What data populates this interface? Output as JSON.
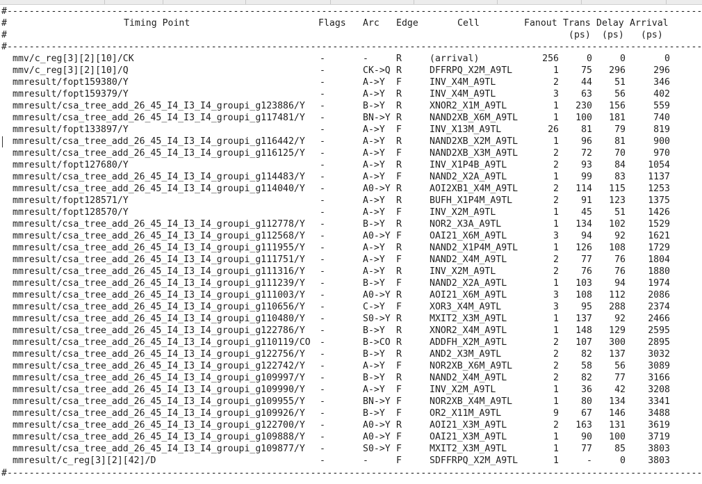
{
  "separator": "#---------------------------------------------------------------------------------------------------------------------------------",
  "header1": {
    "hash": "#",
    "timing_point": "Timing Point",
    "flags": "Flags",
    "arc": "Arc",
    "edge": "Edge",
    "cell": "Cell",
    "fanout": "Fanout",
    "trans": "Trans",
    "delay": "Delay",
    "arrival": "Arrival"
  },
  "header2": {
    "hash": "#",
    "trans_unit": "(ps)",
    "delay_unit": "(ps)",
    "arrival_unit": "(ps)"
  },
  "rows": [
    [
      "mmv/c_reg[3][2][10]/CK",
      "-",
      "-",
      "R",
      "(arrival)",
      "256",
      "0",
      "0",
      "0"
    ],
    [
      "mmv/c_reg[3][2][10]/Q",
      "-",
      "CK->Q",
      "R",
      "DFFRPQ_X2M_A9TL",
      "1",
      "75",
      "296",
      "296"
    ],
    [
      "mmresult/fopt159380/Y",
      "-",
      "A->Y",
      "F",
      "INV_X4M_A9TL",
      "2",
      "44",
      "51",
      "346"
    ],
    [
      "mmresult/fopt159379/Y",
      "-",
      "A->Y",
      "R",
      "INV_X4M_A9TL",
      "3",
      "63",
      "56",
      "402"
    ],
    [
      "mmresult/csa_tree_add_26_45_I4_I3_I4_groupi_g123886/Y",
      "-",
      "B->Y",
      "R",
      "XNOR2_X1M_A9TL",
      "1",
      "230",
      "156",
      "559"
    ],
    [
      "mmresult/csa_tree_add_26_45_I4_I3_I4_groupi_g117481/Y",
      "-",
      "BN->Y",
      "R",
      "NAND2XB_X6M_A9TL",
      "1",
      "100",
      "181",
      "740"
    ],
    [
      "mmresult/fopt133897/Y",
      "-",
      "A->Y",
      "F",
      "INV_X13M_A9TL",
      "26",
      "81",
      "79",
      "819"
    ],
    [
      "mmresult/csa_tree_add_26_45_I4_I3_I4_groupi_g116442/Y",
      "-",
      "A->Y",
      "R",
      "NAND2XB_X2M_A9TL",
      "1",
      "96",
      "81",
      "900"
    ],
    [
      "mmresult/csa_tree_add_26_45_I4_I3_I4_groupi_g116125/Y",
      "-",
      "A->Y",
      "F",
      "NAND2XB_X3M_A9TL",
      "2",
      "72",
      "70",
      "970"
    ],
    [
      "mmresult/fopt127680/Y",
      "-",
      "A->Y",
      "R",
      "INV_X1P4B_A9TL",
      "2",
      "93",
      "84",
      "1054"
    ],
    [
      "mmresult/csa_tree_add_26_45_I4_I3_I4_groupi_g114483/Y",
      "-",
      "A->Y",
      "F",
      "NAND2_X2A_A9TL",
      "1",
      "99",
      "83",
      "1137"
    ],
    [
      "mmresult/csa_tree_add_26_45_I4_I3_I4_groupi_g114040/Y",
      "-",
      "A0->Y",
      "R",
      "AOI2XB1_X4M_A9TL",
      "2",
      "114",
      "115",
      "1253"
    ],
    [
      "mmresult/fopt128571/Y",
      "-",
      "A->Y",
      "R",
      "BUFH_X1P4M_A9TL",
      "2",
      "91",
      "123",
      "1375"
    ],
    [
      "mmresult/fopt128570/Y",
      "-",
      "A->Y",
      "F",
      "INV_X2M_A9TL",
      "1",
      "45",
      "51",
      "1426"
    ],
    [
      "mmresult/csa_tree_add_26_45_I4_I3_I4_groupi_g112778/Y",
      "-",
      "B->Y",
      "R",
      "NOR2_X3A_A9TL",
      "1",
      "134",
      "102",
      "1529"
    ],
    [
      "mmresult/csa_tree_add_26_45_I4_I3_I4_groupi_g112568/Y",
      "-",
      "A0->Y",
      "F",
      "OAI21_X6M_A9TL",
      "3",
      "94",
      "92",
      "1621"
    ],
    [
      "mmresult/csa_tree_add_26_45_I4_I3_I4_groupi_g111955/Y",
      "-",
      "A->Y",
      "R",
      "NAND2_X1P4M_A9TL",
      "1",
      "126",
      "108",
      "1729"
    ],
    [
      "mmresult/csa_tree_add_26_45_I4_I3_I4_groupi_g111751/Y",
      "-",
      "A->Y",
      "F",
      "NAND2_X4M_A9TL",
      "2",
      "77",
      "76",
      "1804"
    ],
    [
      "mmresult/csa_tree_add_26_45_I4_I3_I4_groupi_g111316/Y",
      "-",
      "A->Y",
      "R",
      "INV_X2M_A9TL",
      "2",
      "76",
      "76",
      "1880"
    ],
    [
      "mmresult/csa_tree_add_26_45_I4_I3_I4_groupi_g111239/Y",
      "-",
      "B->Y",
      "F",
      "NAND2_X2A_A9TL",
      "1",
      "103",
      "94",
      "1974"
    ],
    [
      "mmresult/csa_tree_add_26_45_I4_I3_I4_groupi_g111003/Y",
      "-",
      "A0->Y",
      "R",
      "AOI21_X6M_A9TL",
      "3",
      "108",
      "112",
      "2086"
    ],
    [
      "mmresult/csa_tree_add_26_45_I4_I3_I4_groupi_g110656/Y",
      "-",
      "C->Y",
      "F",
      "XOR3_X4M_A9TL",
      "3",
      "95",
      "288",
      "2374"
    ],
    [
      "mmresult/csa_tree_add_26_45_I4_I3_I4_groupi_g110480/Y",
      "-",
      "S0->Y",
      "R",
      "MXIT2_X3M_A9TL",
      "1",
      "137",
      "92",
      "2466"
    ],
    [
      "mmresult/csa_tree_add_26_45_I4_I3_I4_groupi_g122786/Y",
      "-",
      "B->Y",
      "R",
      "XNOR2_X4M_A9TL",
      "1",
      "148",
      "129",
      "2595"
    ],
    [
      "mmresult/csa_tree_add_26_45_I4_I3_I4_groupi_g110119/CO",
      "-",
      "B->CO",
      "R",
      "ADDFH_X2M_A9TL",
      "2",
      "107",
      "300",
      "2895"
    ],
    [
      "mmresult/csa_tree_add_26_45_I4_I3_I4_groupi_g122756/Y",
      "-",
      "B->Y",
      "R",
      "AND2_X3M_A9TL",
      "2",
      "82",
      "137",
      "3032"
    ],
    [
      "mmresult/csa_tree_add_26_45_I4_I3_I4_groupi_g122742/Y",
      "-",
      "A->Y",
      "F",
      "NOR2XB_X6M_A9TL",
      "2",
      "58",
      "56",
      "3089"
    ],
    [
      "mmresult/csa_tree_add_26_45_I4_I3_I4_groupi_g109997/Y",
      "-",
      "B->Y",
      "R",
      "NAND2_X4M_A9TL",
      "2",
      "82",
      "77",
      "3166"
    ],
    [
      "mmresult/csa_tree_add_26_45_I4_I3_I4_groupi_g109990/Y",
      "-",
      "A->Y",
      "F",
      "INV_X2M_A9TL",
      "1",
      "36",
      "42",
      "3208"
    ],
    [
      "mmresult/csa_tree_add_26_45_I4_I3_I4_groupi_g109955/Y",
      "-",
      "BN->Y",
      "F",
      "NOR2XB_X4M_A9TL",
      "1",
      "80",
      "134",
      "3341"
    ],
    [
      "mmresult/csa_tree_add_26_45_I4_I3_I4_groupi_g109926/Y",
      "-",
      "B->Y",
      "F",
      "OR2_X11M_A9TL",
      "9",
      "67",
      "146",
      "3488"
    ],
    [
      "mmresult/csa_tree_add_26_45_I4_I3_I4_groupi_g122700/Y",
      "-",
      "A0->Y",
      "R",
      "AOI21_X3M_A9TL",
      "2",
      "163",
      "131",
      "3619"
    ],
    [
      "mmresult/csa_tree_add_26_45_I4_I3_I4_groupi_g109888/Y",
      "-",
      "A0->Y",
      "F",
      "OAI21_X3M_A9TL",
      "1",
      "90",
      "100",
      "3719"
    ],
    [
      "mmresult/csa_tree_add_26_45_I4_I3_I4_groupi_g109877/Y",
      "-",
      "S0->Y",
      "F",
      "MXIT2_X3M_A9TL",
      "1",
      "77",
      "85",
      "3803"
    ],
    [
      "mmresult/c_reg[3][2][42]/D",
      "-",
      "-",
      "F",
      "SDFFRPQ_X2M_A9TL",
      "1",
      "-",
      "0",
      "3803"
    ]
  ]
}
